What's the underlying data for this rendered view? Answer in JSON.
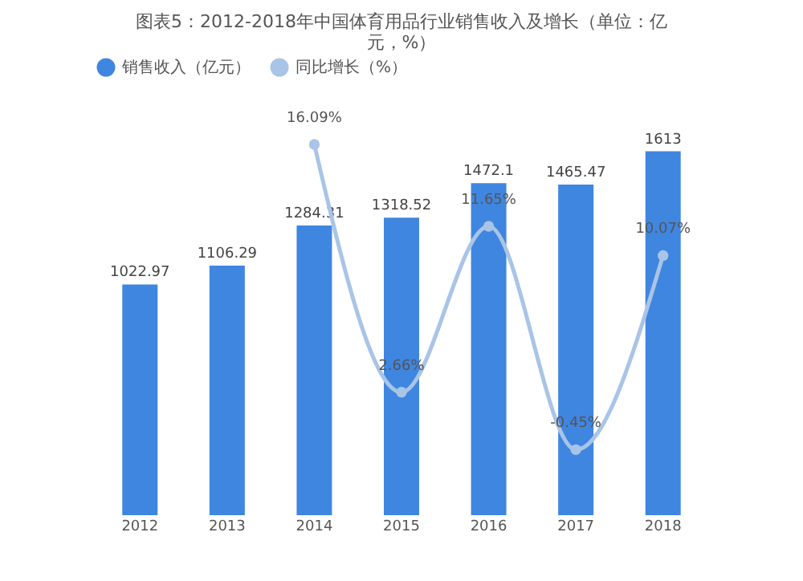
{
  "chart_data": {
    "type": "bar",
    "title": [
      "图表5：2012-2018年中国体育用品行业销售收入及增长（单位：亿",
      "元，%）"
    ],
    "categories": [
      "2012",
      "2013",
      "2014",
      "2015",
      "2016",
      "2017",
      "2018"
    ],
    "series": [
      {
        "name": "销售收入（亿元）",
        "color": "#3f86e0",
        "values": [
          1022.97,
          1106.29,
          1284.31,
          1318.52,
          1472.1,
          1465.47,
          1613
        ]
      },
      {
        "name": "同比增长（%）",
        "type": "line",
        "axis": "y2",
        "color": "#a9c4e6",
        "marker": "circle",
        "values": [
          null,
          null,
          16.09,
          2.66,
          11.65,
          -0.45,
          10.07
        ],
        "value_labels": [
          null,
          null,
          "16.09%",
          "2.66%",
          "11.65%",
          "-0.45%",
          "10.07%"
        ]
      }
    ],
    "data_labels": true,
    "legend": "top",
    "grid": false,
    "tick_labels": "x"
  }
}
